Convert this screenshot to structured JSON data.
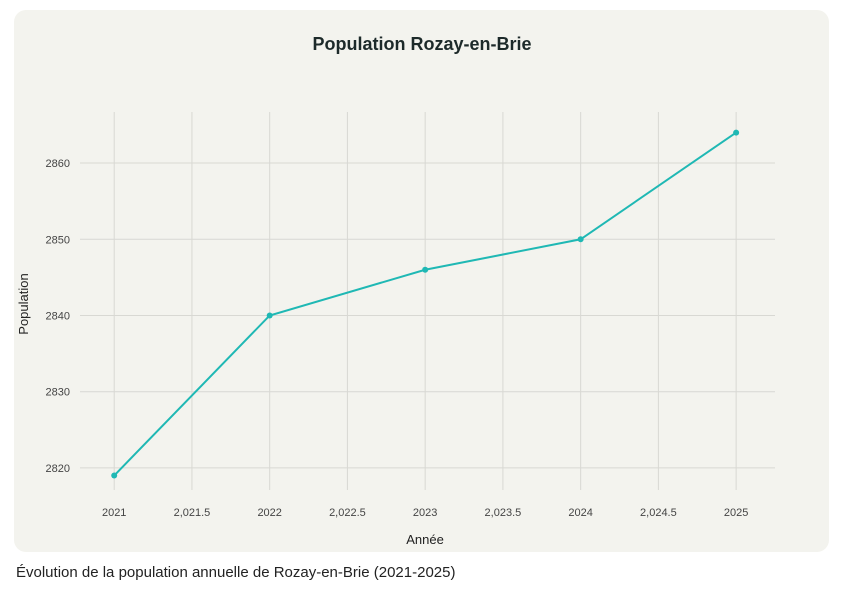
{
  "chart_data": {
    "type": "line",
    "title": "Population Rozay-en-Brie",
    "xlabel": "Année",
    "ylabel": "Population",
    "x": [
      2021,
      2022,
      2023,
      2024,
      2025
    ],
    "series": [
      {
        "values": [
          2819,
          2840,
          2846,
          2850,
          2864
        ],
        "color": "#1fb8b4"
      }
    ],
    "xticks": [
      2021,
      2021.5,
      2022,
      2022.5,
      2023,
      2023.5,
      2024,
      2024.5,
      2025
    ],
    "xtick_labels": [
      "2021",
      "2,021.5",
      "2022",
      "2,022.5",
      "2023",
      "2,023.5",
      "2024",
      "2,024.5",
      "2025"
    ],
    "yticks": [
      2820,
      2830,
      2840,
      2850,
      2860
    ],
    "ytick_labels": [
      "2820",
      "2830",
      "2840",
      "2850",
      "2860"
    ],
    "xlim": [
      2020.78,
      2025.25
    ],
    "ylim": [
      2817.1,
      2866.7
    ],
    "grid": true,
    "legend": "none"
  },
  "caption": "Évolution de la population annuelle de Rozay-en-Brie (2021-2025)"
}
